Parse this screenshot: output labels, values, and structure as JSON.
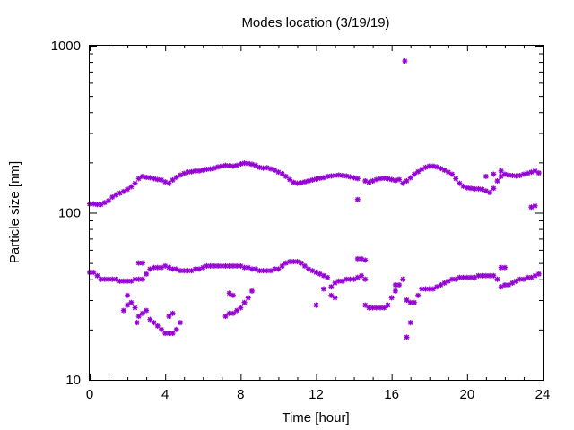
{
  "chart_data": {
    "type": "scatter",
    "title": "Modes location (3/19/19)",
    "xlabel": "Time [hour]",
    "ylabel": "Particle size [nm]",
    "xlim": [
      0,
      24
    ],
    "ylim": [
      10,
      1000
    ],
    "yscale": "log",
    "grid": false,
    "legend": "none",
    "xticks": [
      0,
      4,
      8,
      12,
      16,
      20,
      24
    ],
    "yticks": [
      10,
      100,
      1000
    ],
    "xtick_labels": [
      "0",
      "4",
      "8",
      "12",
      "16",
      "20",
      "24"
    ],
    "ytick_labels": [
      "10",
      "100",
      "1000"
    ],
    "marker_color": "#9400D3",
    "series": [
      {
        "points": [
          [
            0.0,
            113
          ],
          [
            0.2,
            113
          ],
          [
            0.4,
            112
          ],
          [
            0.6,
            112
          ],
          [
            0.8,
            115
          ],
          [
            1.0,
            118
          ],
          [
            1.2,
            124
          ],
          [
            1.4,
            128
          ],
          [
            1.6,
            131
          ],
          [
            1.8,
            134
          ],
          [
            2.0,
            138
          ],
          [
            2.2,
            143
          ],
          [
            2.4,
            150
          ],
          [
            2.6,
            160
          ],
          [
            2.8,
            165
          ],
          [
            3.0,
            163
          ],
          [
            3.2,
            162
          ],
          [
            3.4,
            160
          ],
          [
            3.6,
            158
          ],
          [
            3.8,
            157
          ],
          [
            4.0,
            153
          ],
          [
            4.2,
            150
          ],
          [
            4.4,
            157
          ],
          [
            4.6,
            163
          ],
          [
            4.8,
            168
          ],
          [
            5.0,
            172
          ],
          [
            5.2,
            175
          ],
          [
            5.4,
            176
          ],
          [
            5.6,
            178
          ],
          [
            5.8,
            178
          ],
          [
            6.0,
            180
          ],
          [
            6.2,
            182
          ],
          [
            6.4,
            183
          ],
          [
            6.6,
            185
          ],
          [
            6.8,
            188
          ],
          [
            7.0,
            190
          ],
          [
            7.2,
            192
          ],
          [
            7.4,
            191
          ],
          [
            7.6,
            190
          ],
          [
            7.8,
            192
          ],
          [
            8.0,
            196
          ],
          [
            8.2,
            198
          ],
          [
            8.4,
            197
          ],
          [
            8.6,
            195
          ],
          [
            8.8,
            192
          ],
          [
            9.0,
            187
          ],
          [
            9.2,
            185
          ],
          [
            9.4,
            186
          ],
          [
            9.6,
            183
          ],
          [
            9.8,
            180
          ],
          [
            10.0,
            175
          ],
          [
            10.2,
            171
          ],
          [
            10.4,
            165
          ],
          [
            10.6,
            158
          ],
          [
            10.8,
            152
          ],
          [
            11.0,
            150
          ],
          [
            11.2,
            151
          ],
          [
            11.4,
            153
          ],
          [
            11.6,
            155
          ],
          [
            11.8,
            157
          ],
          [
            12.0,
            159
          ],
          [
            12.2,
            161
          ],
          [
            12.4,
            162
          ],
          [
            12.6,
            165
          ],
          [
            12.8,
            166
          ],
          [
            13.0,
            167
          ],
          [
            13.2,
            168
          ],
          [
            13.4,
            167
          ],
          [
            13.6,
            166
          ],
          [
            13.8,
            164
          ],
          [
            14.0,
            162
          ],
          [
            14.2,
            160
          ],
          [
            14.6,
            155
          ],
          [
            14.8,
            152
          ],
          [
            15.0,
            155
          ],
          [
            15.2,
            158
          ],
          [
            15.4,
            160
          ],
          [
            15.6,
            161
          ],
          [
            15.8,
            160
          ],
          [
            16.0,
            158
          ],
          [
            16.2,
            156
          ],
          [
            16.4,
            158
          ],
          [
            16.6,
            150
          ],
          [
            16.8,
            155
          ],
          [
            17.0,
            162
          ],
          [
            17.2,
            170
          ],
          [
            17.4,
            176
          ],
          [
            17.6,
            182
          ],
          [
            17.8,
            187
          ],
          [
            18.0,
            190
          ],
          [
            18.2,
            190
          ],
          [
            18.4,
            188
          ],
          [
            18.6,
            184
          ],
          [
            18.8,
            180
          ],
          [
            19.0,
            175
          ],
          [
            19.2,
            170
          ],
          [
            19.4,
            160
          ],
          [
            19.6,
            150
          ],
          [
            19.8,
            144
          ],
          [
            20.0,
            141
          ],
          [
            20.2,
            140
          ],
          [
            20.4,
            139
          ],
          [
            20.6,
            139
          ],
          [
            20.8,
            138
          ],
          [
            21.0,
            135
          ],
          [
            21.2,
            132
          ],
          [
            21.4,
            140
          ],
          [
            21.6,
            155
          ],
          [
            21.8,
            165
          ],
          [
            22.0,
            170
          ],
          [
            22.2,
            168
          ],
          [
            22.4,
            167
          ],
          [
            22.6,
            166
          ],
          [
            22.8,
            167
          ],
          [
            23.0,
            170
          ],
          [
            23.2,
            172
          ],
          [
            23.4,
            175
          ],
          [
            23.6,
            178
          ],
          [
            23.8,
            173
          ],
          [
            16.7,
            810
          ],
          [
            14.2,
            120
          ],
          [
            21.0,
            165
          ],
          [
            21.4,
            170
          ],
          [
            21.8,
            178
          ],
          [
            23.6,
            110
          ],
          [
            23.4,
            108
          ]
        ]
      },
      {
        "points": [
          [
            0.0,
            44
          ],
          [
            0.2,
            44
          ],
          [
            0.4,
            42
          ],
          [
            0.6,
            40
          ],
          [
            0.8,
            40
          ],
          [
            1.0,
            40
          ],
          [
            1.2,
            40
          ],
          [
            1.4,
            40
          ],
          [
            1.6,
            39
          ],
          [
            1.8,
            39
          ],
          [
            2.0,
            39
          ],
          [
            2.2,
            39
          ],
          [
            2.4,
            40
          ],
          [
            2.6,
            40
          ],
          [
            2.8,
            40
          ],
          [
            3.0,
            43
          ],
          [
            3.2,
            46
          ],
          [
            3.4,
            47
          ],
          [
            3.6,
            47
          ],
          [
            3.8,
            47
          ],
          [
            4.0,
            48
          ],
          [
            4.2,
            47
          ],
          [
            4.4,
            46
          ],
          [
            4.6,
            46
          ],
          [
            4.8,
            45
          ],
          [
            5.0,
            45
          ],
          [
            5.2,
            45
          ],
          [
            5.4,
            45
          ],
          [
            5.6,
            46
          ],
          [
            5.8,
            46
          ],
          [
            6.0,
            47
          ],
          [
            6.2,
            48
          ],
          [
            6.4,
            48
          ],
          [
            6.6,
            48
          ],
          [
            6.8,
            48
          ],
          [
            7.0,
            48
          ],
          [
            7.2,
            48
          ],
          [
            7.4,
            48
          ],
          [
            7.6,
            48
          ],
          [
            7.8,
            48
          ],
          [
            8.0,
            48
          ],
          [
            8.2,
            47
          ],
          [
            8.4,
            47
          ],
          [
            8.6,
            46
          ],
          [
            8.8,
            46
          ],
          [
            9.0,
            45
          ],
          [
            9.2,
            45
          ],
          [
            9.4,
            45
          ],
          [
            9.6,
            45
          ],
          [
            9.8,
            46
          ],
          [
            10.0,
            46
          ],
          [
            10.2,
            48
          ],
          [
            10.4,
            50
          ],
          [
            10.6,
            51
          ],
          [
            10.8,
            51
          ],
          [
            11.0,
            51
          ],
          [
            11.2,
            50
          ],
          [
            11.4,
            48
          ],
          [
            11.6,
            46
          ],
          [
            11.8,
            45
          ],
          [
            12.0,
            44
          ],
          [
            12.2,
            43
          ],
          [
            12.4,
            42
          ],
          [
            12.6,
            41
          ],
          [
            12.8,
            36
          ],
          [
            13.0,
            38
          ],
          [
            13.2,
            39
          ],
          [
            13.4,
            39
          ],
          [
            13.6,
            40
          ],
          [
            13.8,
            40
          ],
          [
            14.0,
            40
          ],
          [
            14.2,
            41
          ],
          [
            14.4,
            42
          ],
          [
            14.6,
            40
          ],
          [
            14.6,
            28
          ],
          [
            14.8,
            27
          ],
          [
            15.0,
            27
          ],
          [
            15.2,
            27
          ],
          [
            15.4,
            27
          ],
          [
            15.6,
            27
          ],
          [
            15.8,
            28
          ],
          [
            16.0,
            31
          ],
          [
            16.2,
            34
          ],
          [
            16.4,
            37
          ],
          [
            16.6,
            40
          ],
          [
            16.8,
            30
          ],
          [
            17.0,
            29
          ],
          [
            17.2,
            29
          ],
          [
            17.4,
            32
          ],
          [
            17.6,
            35
          ],
          [
            17.8,
            35
          ],
          [
            18.0,
            35
          ],
          [
            18.2,
            35
          ],
          [
            18.4,
            36
          ],
          [
            18.6,
            37
          ],
          [
            18.8,
            38
          ],
          [
            19.0,
            39
          ],
          [
            19.2,
            40
          ],
          [
            19.4,
            40
          ],
          [
            19.6,
            41
          ],
          [
            19.8,
            41
          ],
          [
            20.0,
            41
          ],
          [
            20.2,
            41
          ],
          [
            20.4,
            41
          ],
          [
            20.6,
            42
          ],
          [
            20.8,
            42
          ],
          [
            21.0,
            42
          ],
          [
            21.2,
            42
          ],
          [
            21.4,
            42
          ],
          [
            21.6,
            40
          ],
          [
            21.8,
            36
          ],
          [
            22.0,
            37
          ],
          [
            22.2,
            37
          ],
          [
            22.4,
            38
          ],
          [
            22.6,
            39
          ],
          [
            22.8,
            40
          ],
          [
            23.0,
            40
          ],
          [
            23.2,
            41
          ],
          [
            23.4,
            41
          ],
          [
            23.6,
            42
          ],
          [
            23.8,
            43
          ],
          [
            14.2,
            53
          ],
          [
            14.4,
            53
          ],
          [
            14.6,
            52
          ],
          [
            2.6,
            50
          ],
          [
            2.8,
            50
          ],
          [
            21.8,
            47
          ],
          [
            22.0,
            47
          ]
        ]
      },
      {
        "points": [
          [
            1.8,
            26
          ],
          [
            2.0,
            28
          ],
          [
            2.2,
            29
          ],
          [
            2.4,
            27
          ],
          [
            2.6,
            24
          ],
          [
            2.8,
            25
          ],
          [
            3.0,
            26
          ],
          [
            3.2,
            23
          ],
          [
            3.4,
            22
          ],
          [
            3.6,
            21
          ],
          [
            3.8,
            20
          ],
          [
            4.0,
            19
          ],
          [
            4.2,
            19
          ],
          [
            4.4,
            19
          ],
          [
            4.6,
            20
          ],
          [
            4.8,
            22
          ],
          [
            4.2,
            24
          ],
          [
            4.4,
            25
          ],
          [
            2.5,
            22
          ],
          [
            2.0,
            32
          ],
          [
            7.2,
            24
          ],
          [
            7.4,
            25
          ],
          [
            7.6,
            25
          ],
          [
            7.8,
            26
          ],
          [
            8.0,
            27
          ],
          [
            8.2,
            29
          ],
          [
            8.4,
            31
          ],
          [
            8.6,
            34
          ],
          [
            7.4,
            33
          ],
          [
            7.6,
            32
          ],
          [
            12.0,
            28
          ],
          [
            12.4,
            35
          ],
          [
            12.8,
            32
          ],
          [
            13.0,
            31
          ],
          [
            16.8,
            18
          ],
          [
            17.0,
            22
          ],
          [
            16.2,
            37
          ]
        ]
      }
    ]
  }
}
